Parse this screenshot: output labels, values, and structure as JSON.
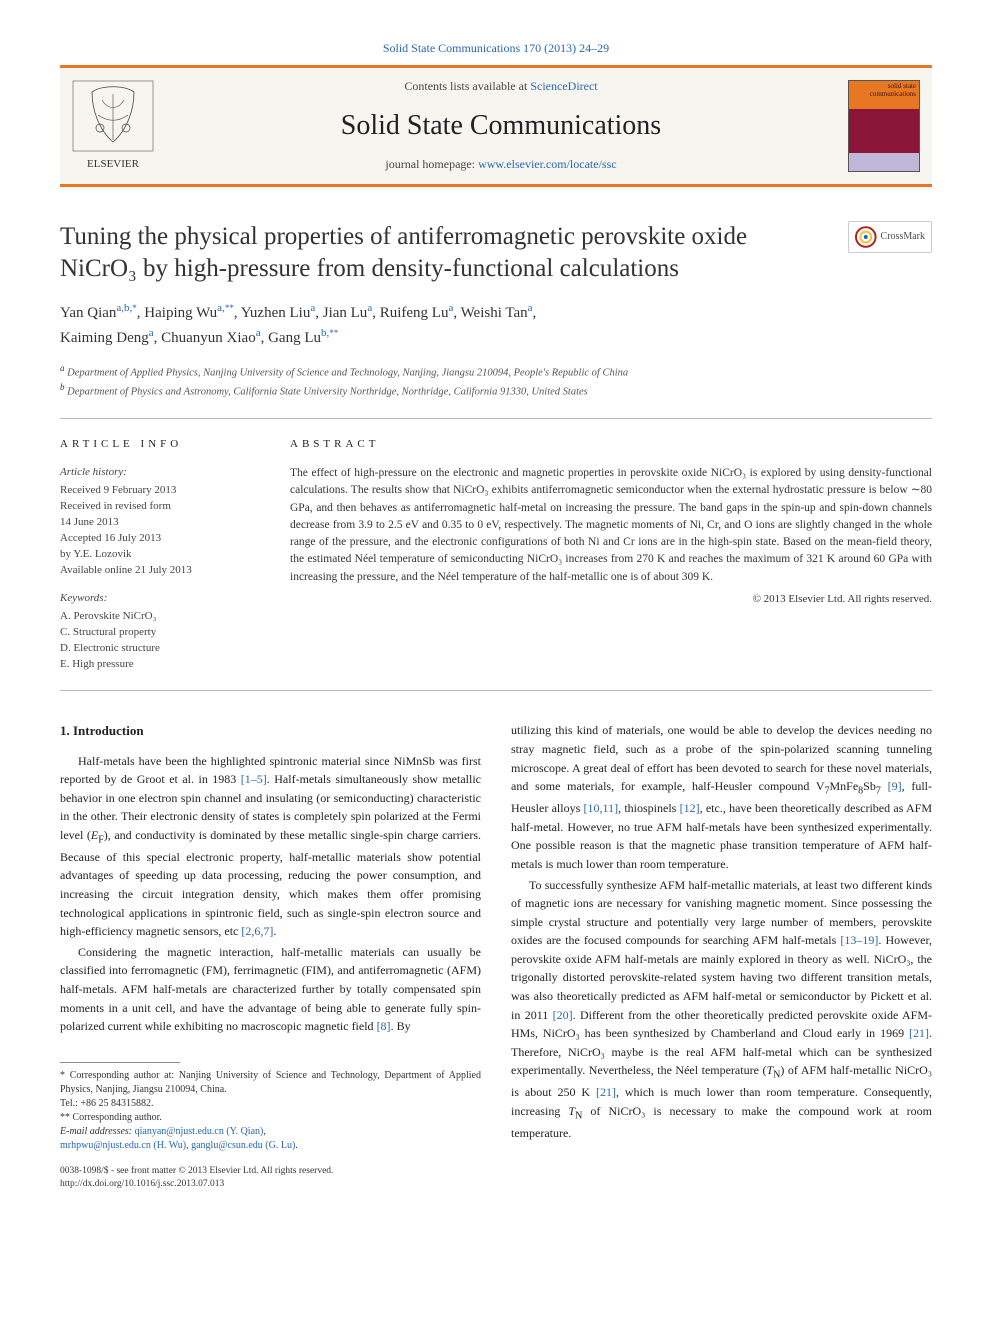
{
  "top_link": "Solid State Communications 170 (2013) 24–29",
  "header": {
    "contents_prefix": "Contents lists available at ",
    "contents_link": "ScienceDirect",
    "journal_name": "Solid State Communications",
    "homepage_prefix": "journal homepage: ",
    "homepage_url": "www.elsevier.com/locate/ssc",
    "cover_text": "solid state communications",
    "logo_label": "ELSEVIER"
  },
  "crossmark_label": "CrossMark",
  "title": "Tuning the physical properties of antiferromagnetic perovskite oxide NiCrO₃ by high-pressure from density-functional calculations",
  "authors_html_parts": {
    "a1_name": "Yan Qian",
    "a1_aff": "a,b,",
    "a1_corr": "*",
    "a2_name": "Haiping Wu",
    "a2_aff": "a,",
    "a2_corr": "**",
    "a3_name": "Yuzhen Liu",
    "a3_aff": "a",
    "a4_name": "Jian Lu",
    "a4_aff": "a",
    "a5_name": "Ruifeng Lu",
    "a5_aff": "a",
    "a6_name": "Weishi Tan",
    "a6_aff": "a",
    "a7_name": "Kaiming Deng",
    "a7_aff": "a",
    "a8_name": "Chuanyun Xiao",
    "a8_aff": "a",
    "a9_name": "Gang Lu",
    "a9_aff": "b,",
    "a9_corr": "**"
  },
  "affiliations": {
    "a": "Department of Applied Physics, Nanjing University of Science and Technology, Nanjing, Jiangsu 210094, People's Republic of China",
    "b": "Department of Physics and Astronomy, California State University Northridge, Northridge, California 91330, United States"
  },
  "article_info": {
    "head": "ARTICLE INFO",
    "history_title": "Article history:",
    "history": "Received 9 February 2013\nReceived in revised form\n14 June 2013\nAccepted 16 July 2013\nby Y.E. Lozovik\nAvailable online 21 July 2013",
    "keywords_title": "Keywords:",
    "keywords": "A. Perovskite NiCrO₃\nC. Structural property\nD. Electronic structure\nE. High pressure"
  },
  "abstract": {
    "head": "ABSTRACT",
    "body": "The effect of high-pressure on the electronic and magnetic properties in perovskite oxide NiCrO₃ is explored by using density-functional calculations. The results show that NiCrO₃ exhibits antiferromagnetic semiconductor when the external hydrostatic pressure is below ∼80 GPa, and then behaves as antiferromagnetic half-metal on increasing the pressure. The band gaps in the spin-up and spin-down channels decrease from 3.9 to 2.5 eV and 0.35 to 0 eV, respectively. The magnetic moments of Ni, Cr, and O ions are slightly changed in the whole range of the pressure, and the electronic configurations of both Ni and Cr ions are in the high-spin state. Based on the mean-field theory, the estimated Néel temperature of semiconducting NiCrO₃ increases from 270 K and reaches the maximum of 321 K around 60 GPa with increasing the pressure, and the Néel temperature of the half-metallic one is of about 309 K.",
    "copyright": "© 2013 Elsevier Ltd. All rights reserved."
  },
  "body": {
    "section1_title": "1.  Introduction",
    "p1": "Half-metals have been the highlighted spintronic material since NiMnSb was first reported by de Groot et al. in 1983 [1–5]. Half-metals simultaneously show metallic behavior in one electron spin channel and insulating (or semiconducting) characteristic in the other. Their electronic density of states is completely spin polarized at the Fermi level (E_F), and conductivity is dominated by these metallic single-spin charge carriers. Because of this special electronic property, half-metallic materials show potential advantages of speeding up data processing, reducing the power consumption, and increasing the circuit integration density, which makes them offer promising technological applications in spintronic field, such as single-spin electron source and high-efficiency magnetic sensors, etc [2,6,7].",
    "p2": "Considering the magnetic interaction, half-metallic materials can usually be classified into ferromagnetic (FM), ferrimagnetic (FIM), and antiferromagnetic (AFM) half-metals. AFM half-metals are characterized further by totally compensated spin moments in a unit cell, and have the advantage of being able to generate fully spin-polarized current while exhibiting no macroscopic magnetic field [8]. By",
    "p3": "utilizing this kind of materials, one would be able to develop the devices needing no stray magnetic field, such as a probe of the spin-polarized scanning tunneling microscope. A great deal of effort has been devoted to search for these novel materials, and some materials, for example, half-Heusler compound V₇MnFe₈Sb₇ [9], full-Heusler alloys [10,11], thiospinels [12], etc., have been theoretically described as AFM half-metal. However, no true AFM half-metals have been synthesized experimentally. One possible reason is that the magnetic phase transition temperature of AFM half-metals is much lower than room temperature.",
    "p4": "To successfully synthesize AFM half-metallic materials, at least two different kinds of magnetic ions are necessary for vanishing magnetic moment. Since possessing the simple crystal structure and potentially very large number of members, perovskite oxides are the focused compounds for searching AFM half-metals [13–19]. However, perovskite oxide AFM half-metals are mainly explored in theory as well. NiCrO₃, the trigonally distorted perovskite-related system having two different transition metals, was also theoretically predicted as AFM half-metal or semiconductor by Pickett et al. in 2011 [20]. Different from the other theoretically predicted perovskite oxide AFM-HMs, NiCrO₃ has been synthesized by Chamberland and Cloud early in 1969 [21]. Therefore, NiCrO₃ maybe is the real AFM half-metal which can be synthesized experimentally. Nevertheless, the Néel temperature (T_N) of AFM half-metallic NiCrO₃ is about 250 K [21], which is much lower than room temperature. Consequently, increasing T_N of NiCrO₃ is necessary to make the compound work at room temperature."
  },
  "footnotes": {
    "corr1": "* Corresponding author at: Nanjing University of Science and Technology, Department of Applied Physics, Nanjing, Jiangsu 210094, China.\nTel.: +86 25 84315882.",
    "corr2": "** Corresponding author.",
    "email_label": "E-mail addresses: ",
    "email1": "qianyan@njust.edu.cn (Y. Qian)",
    "email2": "mrhpwu@njust.edu.cn (H. Wu)",
    "email3": "ganglu@csun.edu (G. Lu)"
  },
  "bottom": {
    "issn": "0038-1098/$ - see front matter © 2013 Elsevier Ltd. All rights reserved.",
    "doi": "http://dx.doi.org/10.1016/j.ssc.2013.07.013"
  },
  "colors": {
    "orange": "#e87722",
    "link": "#2a66b1",
    "cover_bg": "#8a1538",
    "cover_bot": "#bfb8d8"
  }
}
